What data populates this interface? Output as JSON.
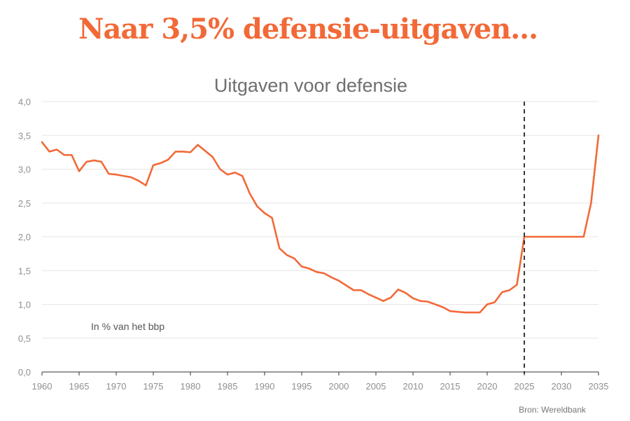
{
  "headline": "Naar 3,5% defensie-uitgaven...",
  "chart_data": {
    "type": "line",
    "title": "Uitgaven voor defensie",
    "unit_label": "In % van het bbp",
    "source": "Bron: Wereldbank",
    "xlim": [
      1960,
      2035
    ],
    "ylim": [
      0,
      4
    ],
    "x_ticks": [
      1960,
      1965,
      1970,
      1975,
      1980,
      1985,
      1990,
      1995,
      2000,
      2005,
      2010,
      2015,
      2020,
      2025,
      2030,
      2035
    ],
    "y_ticks": [
      0,
      0.5,
      1,
      1.5,
      2,
      2.5,
      3,
      3.5,
      4
    ],
    "y_tick_labels": [
      "0,0",
      "0,5",
      "1,0",
      "1,5",
      "2,0",
      "2,5",
      "3,0",
      "3,5",
      "4,0"
    ],
    "grid": "horizontal",
    "reference_line_x": 2025,
    "colors": {
      "line": "#f26938",
      "headline": "#f26938",
      "grid": "#e6e6e6",
      "reference_line": "#222222"
    },
    "series": [
      {
        "x": [
          1960,
          1961,
          1962,
          1963,
          1964,
          1965,
          1966,
          1967,
          1968,
          1969,
          1970,
          1971,
          1972,
          1973,
          1974,
          1975,
          1976,
          1977,
          1978,
          1979,
          1980,
          1981,
          1982,
          1983,
          1984,
          1985,
          1986,
          1987,
          1988,
          1989,
          1990,
          1991,
          1992,
          1993,
          1994,
          1995,
          1996,
          1997,
          1998,
          1999,
          2000,
          2001,
          2002,
          2003,
          2004,
          2005,
          2006,
          2007,
          2008,
          2009,
          2010,
          2011,
          2012,
          2013,
          2014,
          2015,
          2016,
          2017,
          2018,
          2019,
          2020,
          2021,
          2022,
          2023,
          2024,
          2025,
          2026,
          2027,
          2028,
          2029,
          2030,
          2031,
          2032,
          2033,
          2034,
          2035
        ],
        "y": [
          3.4,
          3.26,
          3.29,
          3.21,
          3.21,
          2.97,
          3.11,
          3.13,
          3.11,
          2.93,
          2.92,
          2.9,
          2.88,
          2.83,
          2.76,
          3.06,
          3.09,
          3.14,
          3.26,
          3.26,
          3.25,
          3.36,
          3.27,
          3.18,
          3.0,
          2.92,
          2.95,
          2.9,
          2.64,
          2.45,
          2.35,
          2.28,
          1.83,
          1.73,
          1.68,
          1.56,
          1.53,
          1.48,
          1.46,
          1.4,
          1.35,
          1.28,
          1.21,
          1.21,
          1.15,
          1.1,
          1.05,
          1.1,
          1.22,
          1.17,
          1.09,
          1.05,
          1.04,
          1.0,
          0.96,
          0.9,
          0.89,
          0.88,
          0.88,
          0.88,
          1.0,
          1.03,
          1.18,
          1.21,
          1.29,
          2.0,
          2.0,
          2.0,
          2.0,
          2.0,
          2.0,
          2.0,
          2.0,
          2.0,
          2.5,
          3.5
        ]
      }
    ]
  }
}
